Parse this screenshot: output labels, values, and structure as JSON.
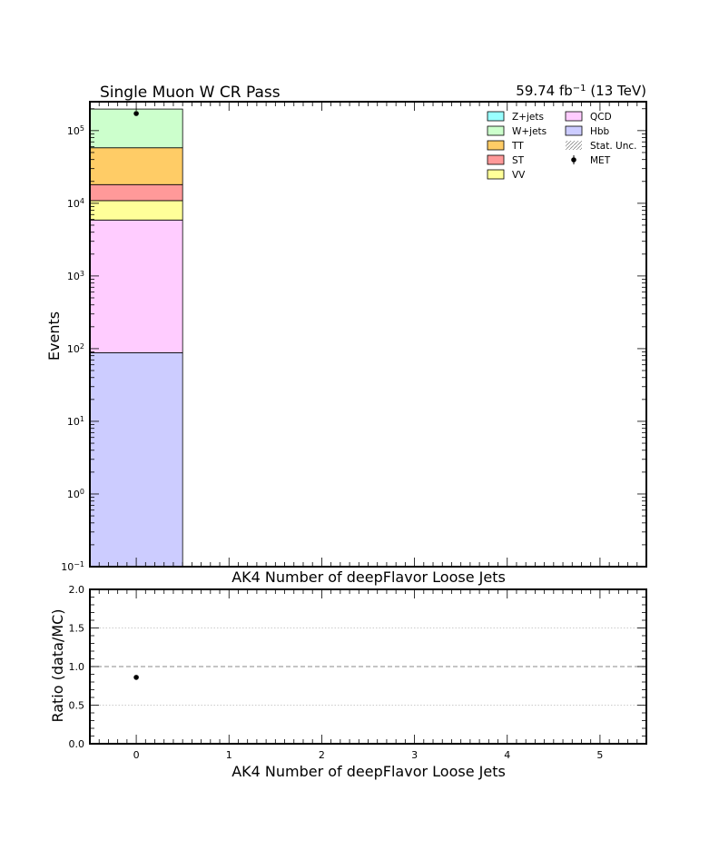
{
  "chart_data": [
    {
      "panel": "main",
      "type": "bar",
      "stacked": true,
      "title": "Single Muon W CR Pass",
      "lumi": "59.74 fb",
      "lumi_exp": "−1",
      "lumi_energy": "(13 TeV)",
      "xlabel": "AK4 Number of deepFlavor Loose Jets",
      "ylabel": "Events",
      "yscale": "log",
      "ylim": [
        0.1,
        250000
      ],
      "xlim": [
        -0.5,
        5.5
      ],
      "yticks": [
        {
          "value": 0.1,
          "base": "10",
          "exp": "−1"
        },
        {
          "value": 1,
          "base": "10",
          "exp": "0"
        },
        {
          "value": 10,
          "base": "10",
          "exp": "1"
        },
        {
          "value": 100,
          "base": "10",
          "exp": "2"
        },
        {
          "value": 1000,
          "base": "10",
          "exp": "3"
        },
        {
          "value": 10000,
          "base": "10",
          "exp": "4"
        },
        {
          "value": 100000,
          "base": "10",
          "exp": "5"
        }
      ],
      "x": [
        0
      ],
      "series": [
        {
          "name": "Hbb",
          "color": "#ccccff",
          "values": [
            88
          ]
        },
        {
          "name": "QCD",
          "color": "#ffccff",
          "values": [
            5800
          ]
        },
        {
          "name": "VV",
          "color": "#ffff99",
          "values": [
            5000
          ]
        },
        {
          "name": "ST",
          "color": "#ff9999",
          "values": [
            7200
          ]
        },
        {
          "name": "TT",
          "color": "#ffcc66",
          "values": [
            40000
          ]
        },
        {
          "name": "W+jets",
          "color": "#ccffcc",
          "values": [
            140000
          ]
        },
        {
          "name": "Z+jets",
          "color": "#99ffff",
          "values": [
            0
          ]
        }
      ],
      "data_points": {
        "name": "MET",
        "x": [
          0
        ],
        "y": [
          172000
        ]
      },
      "legend": {
        "placement": "top-right",
        "items": [
          {
            "label": "Z+jets",
            "color": "#99ffff",
            "kind": "box"
          },
          {
            "label": "QCD",
            "color": "#ffccff",
            "kind": "box"
          },
          {
            "label": "W+jets",
            "color": "#ccffcc",
            "kind": "box"
          },
          {
            "label": "Hbb",
            "color": "#ccccff",
            "kind": "box"
          },
          {
            "label": "TT",
            "color": "#ffcc66",
            "kind": "box"
          },
          {
            "label": "Stat. Unc.",
            "color": "#888888",
            "kind": "hatch"
          },
          {
            "label": "ST",
            "color": "#ff9999",
            "kind": "box"
          },
          {
            "label": "MET",
            "color": "#000000",
            "kind": "marker"
          },
          {
            "label": "VV",
            "color": "#ffff99",
            "kind": "box"
          }
        ]
      }
    },
    {
      "panel": "ratio",
      "type": "scatter",
      "title": "AK4 Number of deepFlavor Loose Jets",
      "xlabel": "AK4 Number of deepFlavor Loose Jets",
      "ylabel": "Ratio (data/MC)",
      "ylim": [
        0.0,
        2.0
      ],
      "xlim": [
        -0.5,
        5.5
      ],
      "yticks": [
        "0.0",
        "0.5",
        "1.0",
        "1.5",
        "2.0"
      ],
      "xticks": [
        "0",
        "1",
        "2",
        "3",
        "4",
        "5"
      ],
      "grid": true,
      "reference_line": 1.0,
      "x": [
        0
      ],
      "y": [
        0.86
      ]
    }
  ]
}
